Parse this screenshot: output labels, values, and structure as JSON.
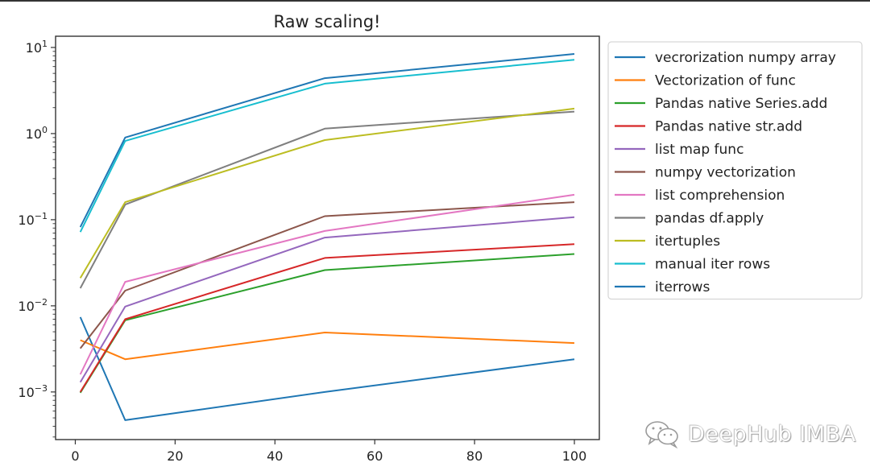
{
  "chart_data": {
    "type": "line",
    "title": "Raw scaling!",
    "xlabel": "",
    "ylabel": "",
    "yscale": "log",
    "xlim": [
      -3.95,
      105.0
    ],
    "ylim": [
      0.00028,
      13.5
    ],
    "xticks": [
      0,
      20,
      40,
      60,
      80,
      100
    ],
    "xtick_labels": [
      "0",
      "20",
      "40",
      "60",
      "80",
      "100"
    ],
    "yticks": [
      0.001,
      0.01,
      0.1,
      1,
      10
    ],
    "ytick_labels": [
      {
        "base": "10",
        "exp": "−3"
      },
      {
        "base": "10",
        "exp": "−2"
      },
      {
        "base": "10",
        "exp": "−1"
      },
      {
        "base": "10",
        "exp": "0"
      },
      {
        "base": "10",
        "exp": "1"
      }
    ],
    "grid": false,
    "legend_position": "outside-right-top",
    "x": [
      1,
      10,
      50,
      100
    ],
    "series": [
      {
        "name": "vecrorization numpy array",
        "color": "#1f77b4",
        "values": [
          0.0074,
          0.00047,
          0.001,
          0.0024
        ]
      },
      {
        "name": "Vectorization of func",
        "color": "#ff7f0e",
        "values": [
          0.004,
          0.0024,
          0.0049,
          0.0037
        ]
      },
      {
        "name": "Pandas native Series.add",
        "color": "#2ca02c",
        "values": [
          0.00098,
          0.0068,
          0.026,
          0.04
        ]
      },
      {
        "name": "Pandas native str.add",
        "color": "#d62728",
        "values": [
          0.001,
          0.007,
          0.036,
          0.052
        ]
      },
      {
        "name": "list map func",
        "color": "#9467bd",
        "values": [
          0.0013,
          0.0098,
          0.062,
          0.107
        ]
      },
      {
        "name": "numpy vectorization",
        "color": "#8c564b",
        "values": [
          0.0032,
          0.015,
          0.11,
          0.16
        ]
      },
      {
        "name": "list comprehension",
        "color": "#e377c2",
        "values": [
          0.0016,
          0.019,
          0.074,
          0.195
        ]
      },
      {
        "name": "pandas df.apply",
        "color": "#7f7f7f",
        "values": [
          0.016,
          0.15,
          1.14,
          1.8
        ]
      },
      {
        "name": "itertuples",
        "color": "#bcbd22",
        "values": [
          0.021,
          0.16,
          0.84,
          1.95
        ]
      },
      {
        "name": "manual iter rows",
        "color": "#17becf",
        "values": [
          0.072,
          0.82,
          3.8,
          7.2
        ]
      },
      {
        "name": "iterrows",
        "color": "#1f77b4",
        "values": [
          0.082,
          0.9,
          4.4,
          8.4
        ]
      }
    ]
  },
  "watermark": {
    "text": "DeepHub IMBA",
    "icon": "wechat-icon"
  }
}
